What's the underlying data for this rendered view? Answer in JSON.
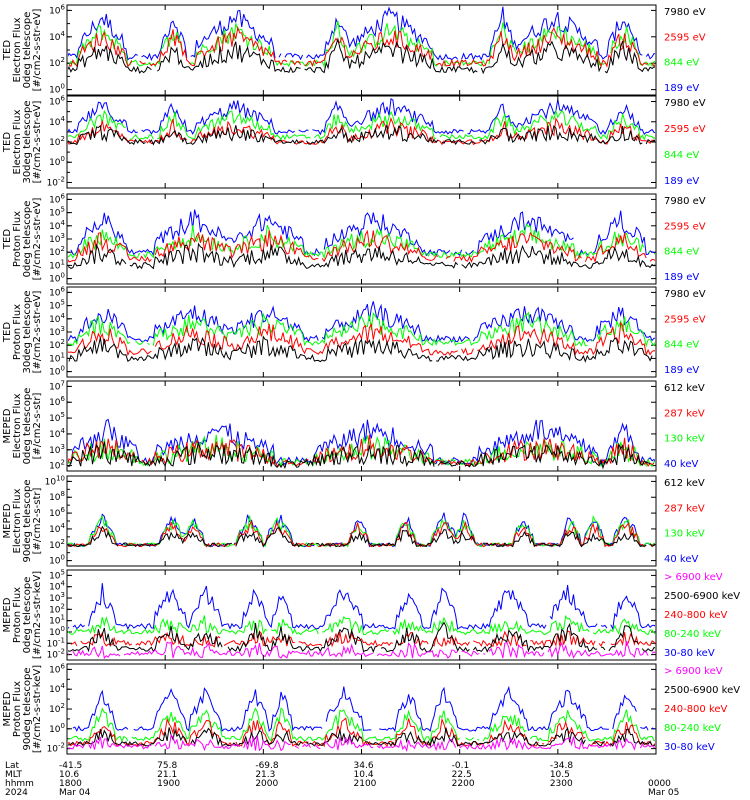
{
  "colors": {
    "blue": "#0000ff",
    "red": "#ff0000",
    "green": "#00ff00",
    "black": "#000000",
    "magenta": "#ff00ff"
  },
  "chart_data": [
    {
      "type": "line",
      "ylabel": [
        "TED",
        "Electron Flux",
        "0deg telescope",
        "[#/cm2-s-str-eV]"
      ],
      "yticks": [
        "10^6",
        "10^4",
        "10^2",
        "10^0"
      ],
      "series": [
        {
          "name": "7980 eV",
          "color": "#000000",
          "base": 1.5,
          "amp": 1.5
        },
        {
          "name": "2595 eV",
          "color": "#ff0000",
          "base": 2.0,
          "amp": 2.0
        },
        {
          "name": "844 eV",
          "color": "#00ff00",
          "base": 2.0,
          "amp": 2.5
        },
        {
          "name": "189 eV",
          "color": "#0000ff",
          "base": 2.5,
          "amp": 3.0
        }
      ],
      "activity": "ted_e"
    },
    {
      "type": "line",
      "ylabel": [
        "TED",
        "Electron Flux",
        "30deg telescope",
        "[#/cm2-s-str-eV]"
      ],
      "yticks": [
        "10^6",
        "10^4",
        "10^2",
        "10^0",
        "10^-2"
      ],
      "series": [
        {
          "name": "7980 eV",
          "color": "#000000",
          "base": 2.0,
          "amp": 1.0
        },
        {
          "name": "2595 eV",
          "color": "#ff0000",
          "base": 2.0,
          "amp": 1.5
        },
        {
          "name": "844 eV",
          "color": "#00ff00",
          "base": 2.5,
          "amp": 2.0
        },
        {
          "name": "189 eV",
          "color": "#0000ff",
          "base": 3.0,
          "amp": 2.5
        }
      ],
      "activity": "ted_e"
    },
    {
      "type": "line",
      "ylabel": [
        "TED",
        "Proton Flux",
        "0deg telescope",
        "[#/cm2-s-str-eV]"
      ],
      "yticks": [
        "10^6",
        "10^5",
        "10^4",
        "10^3",
        "10^2",
        "10^1",
        "10^0"
      ],
      "series": [
        {
          "name": "7980 eV",
          "color": "#000000",
          "base": 1.0,
          "amp": 1.0
        },
        {
          "name": "2595 eV",
          "color": "#ff0000",
          "base": 1.5,
          "amp": 1.5
        },
        {
          "name": "844 eV",
          "color": "#00ff00",
          "base": 1.8,
          "amp": 1.5
        },
        {
          "name": "189 eV",
          "color": "#0000ff",
          "base": 2.0,
          "amp": 2.5
        }
      ],
      "activity": "ted_p"
    },
    {
      "type": "line",
      "ylabel": [
        "TED",
        "Proton Flux",
        "30deg telescope",
        "[#/cm2-s-str-eV]"
      ],
      "yticks": [
        "10^6",
        "10^5",
        "10^4",
        "10^3",
        "10^2",
        "10^1",
        "10^0"
      ],
      "series": [
        {
          "name": "7980 eV",
          "color": "#000000",
          "base": 1.0,
          "amp": 1.0
        },
        {
          "name": "2595 eV",
          "color": "#ff0000",
          "base": 1.5,
          "amp": 1.5
        },
        {
          "name": "844 eV",
          "color": "#00ff00",
          "base": 2.2,
          "amp": 1.5
        },
        {
          "name": "189 eV",
          "color": "#0000ff",
          "base": 2.5,
          "amp": 2.0
        }
      ],
      "activity": "ted_p"
    },
    {
      "type": "line",
      "ylabel": [
        "MEPED",
        "Electron Flux",
        "0deg telescope",
        "[#/cm2-s-str]"
      ],
      "yticks": [
        "10^7",
        "10^6",
        "10^5",
        "10^4",
        "10^3",
        "10^2"
      ],
      "series": [
        {
          "name": "612 keV",
          "color": "#000000",
          "base": 2.1,
          "amp": 0.8
        },
        {
          "name": "287 keV",
          "color": "#ff0000",
          "base": 2.2,
          "amp": 1.0
        },
        {
          "name": "130 keV",
          "color": "#00ff00",
          "base": 2.2,
          "amp": 1.0
        },
        {
          "name": "40 keV",
          "color": "#0000ff",
          "base": 2.3,
          "amp": 2.0
        }
      ],
      "activity": "meped_e0"
    },
    {
      "type": "line",
      "ylabel": [
        "MEPED",
        "Electron Flux",
        "90deg telescope",
        "[#/cm2-s-str]"
      ],
      "yticks": [
        "10^10",
        "10^8",
        "10^6",
        "10^4",
        "10^2",
        "10^0"
      ],
      "series": [
        {
          "name": "612 keV",
          "color": "#000000",
          "base": 2.0,
          "amp": 1.5
        },
        {
          "name": "287 keV",
          "color": "#ff0000",
          "base": 2.0,
          "amp": 2.5
        },
        {
          "name": "130 keV",
          "color": "#00ff00",
          "base": 2.0,
          "amp": 3.0
        },
        {
          "name": "40 keV",
          "color": "#0000ff",
          "base": 2.0,
          "amp": 3.5
        }
      ],
      "activity": "meped_e90"
    },
    {
      "type": "line",
      "ylabel": [
        "MEPED",
        "Proton Flux",
        "0deg telescope",
        "[#/cm2-s-str-keV]"
      ],
      "yticks": [
        "10^5",
        "10^4",
        "10^3",
        "10^2",
        "10^1",
        "10^0",
        "10^-1",
        "10^-2"
      ],
      "series": [
        {
          "name": "> 6900 keV",
          "color": "#ff00ff",
          "base": -1.9,
          "amp": 0.3
        },
        {
          "name": "2500-6900 keV",
          "color": "#000000",
          "base": -1.5,
          "amp": 1.5
        },
        {
          "name": "240-800 keV",
          "color": "#ff0000",
          "base": -1.0,
          "amp": 0.5
        },
        {
          "name": "80-240 keV",
          "color": "#00ff00",
          "base": 0.0,
          "amp": 0.8
        },
        {
          "name": "30-80 keV",
          "color": "#0000ff",
          "base": 0.5,
          "amp": 3.0
        }
      ],
      "activity": "meped_p0"
    },
    {
      "type": "line",
      "ylabel": [
        "MEPED",
        "Proton Flux",
        "90deg telescope",
        "[#/cm2-s-str-keV]"
      ],
      "yticks": [
        "10^6",
        "10^4",
        "10^2",
        "10^0",
        "10^-2"
      ],
      "series": [
        {
          "name": "> 6900 keV",
          "color": "#ff00ff",
          "base": -1.8,
          "amp": 0.4
        },
        {
          "name": "2500-6900 keV",
          "color": "#000000",
          "base": -1.5,
          "amp": 1.0
        },
        {
          "name": "240-800 keV",
          "color": "#ff0000",
          "base": -1.5,
          "amp": 2.0
        },
        {
          "name": "80-240 keV",
          "color": "#00ff00",
          "base": -1.0,
          "amp": 2.5
        },
        {
          "name": "30-80 keV",
          "color": "#0000ff",
          "base": 0.0,
          "amp": 3.5
        }
      ],
      "activity": "meped_p90"
    }
  ],
  "xaxis": {
    "row_labels": [
      "Lat",
      "MLT",
      "hhmm",
      "2024"
    ],
    "columns": [
      {
        "lat": "-41.5",
        "mlt": "10.6",
        "hhmm": "1800",
        "date": "Mar 04"
      },
      {
        "lat": "75.8",
        "mlt": "21.1",
        "hhmm": "1900",
        "date": ""
      },
      {
        "lat": "-69.8",
        "mlt": "21.3",
        "hhmm": "2000",
        "date": ""
      },
      {
        "lat": "34.6",
        "mlt": "10.4",
        "hhmm": "2100",
        "date": ""
      },
      {
        "lat": "-0.1",
        "mlt": "22.5",
        "hhmm": "2200",
        "date": ""
      },
      {
        "lat": "-34.8",
        "mlt": "10.5",
        "hhmm": "2300",
        "date": ""
      },
      {
        "lat": "",
        "mlt": "",
        "hhmm": "0000",
        "date": "Mar 05"
      }
    ]
  }
}
